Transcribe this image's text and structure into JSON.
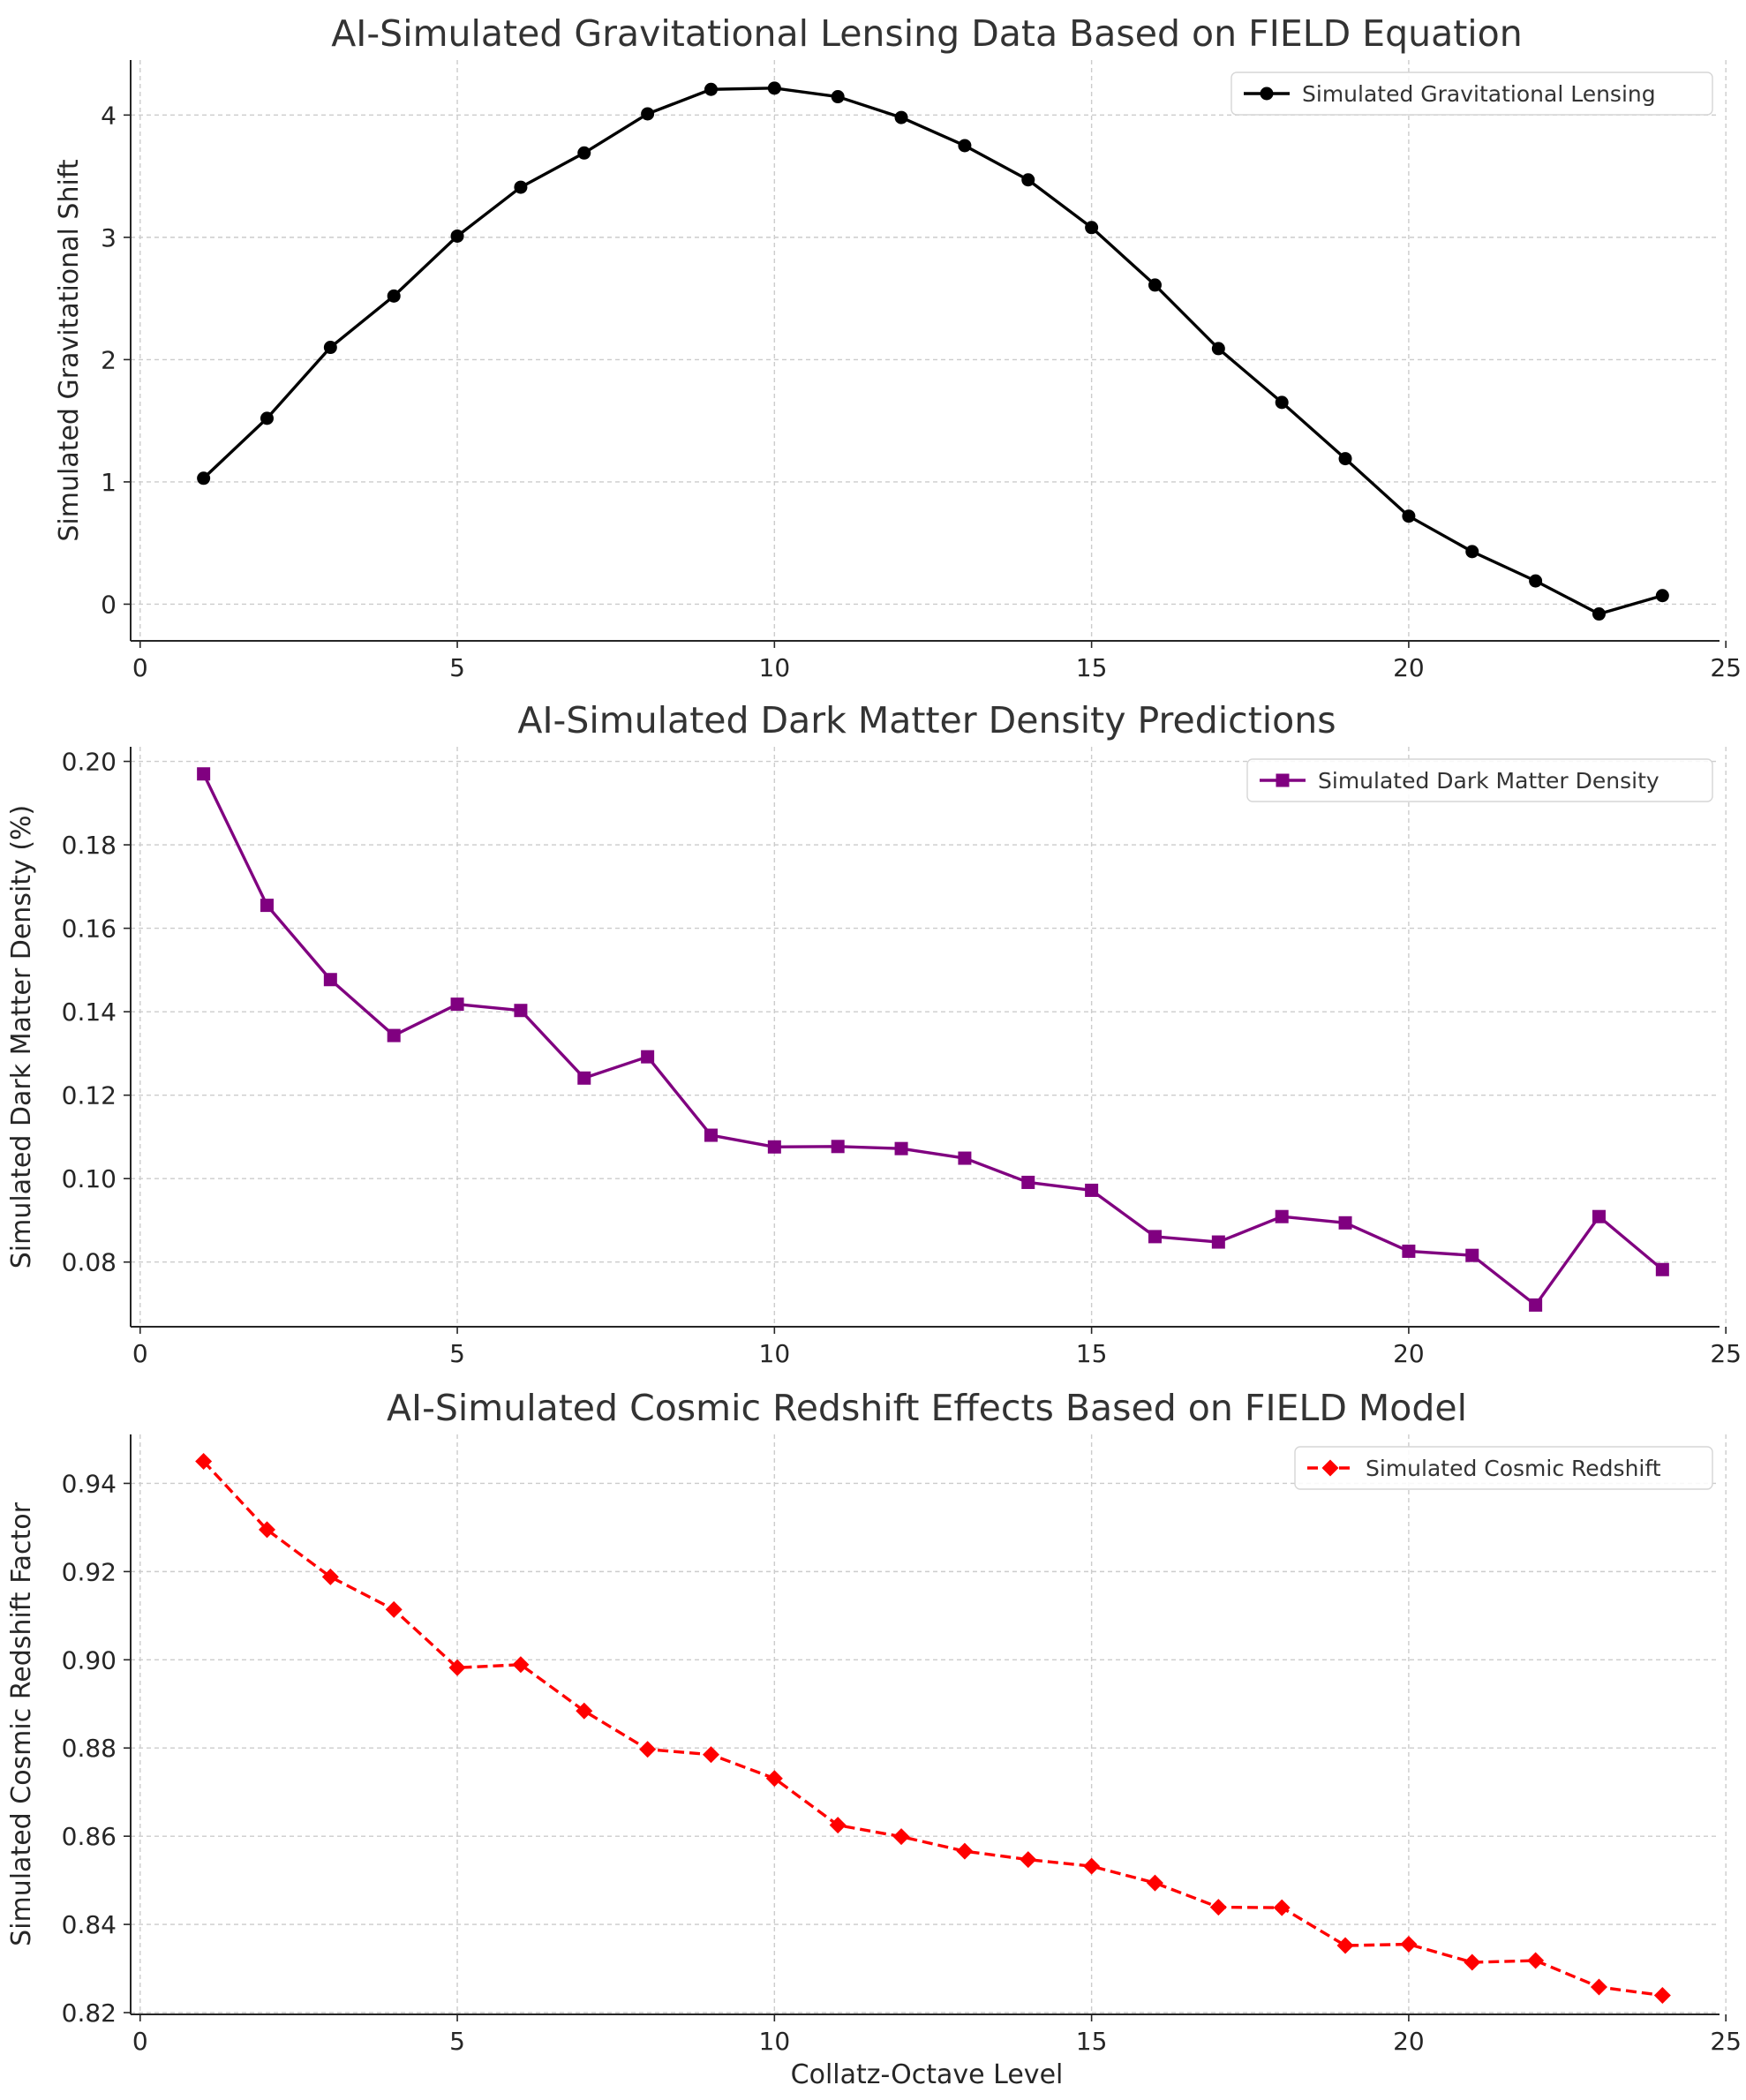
{
  "chart_data": [
    {
      "type": "line",
      "title": "AI-Simulated Gravitational Lensing Data Based on FIELD Equation",
      "xlabel": "",
      "ylabel": "Simulated Gravitational Shift",
      "xlim": [
        -0.15,
        24.9
      ],
      "ylim": [
        -0.3,
        4.45
      ],
      "xticks": [
        "0",
        "5",
        "10",
        "15",
        "20",
        "25"
      ],
      "yticks": [
        "0",
        "1",
        "2",
        "3",
        "4"
      ],
      "grid": true,
      "legend_position": "top-right",
      "series": [
        {
          "name": "Simulated Gravitational Lensing",
          "color": "#000000",
          "marker": "circle",
          "linestyle": "solid",
          "x": [
            1,
            2,
            3,
            4,
            5,
            6,
            7,
            8,
            9,
            10,
            11,
            12,
            13,
            14,
            15,
            16,
            17,
            18,
            19,
            20,
            21,
            22,
            23,
            24
          ],
          "y": [
            1.03,
            1.52,
            2.1,
            2.52,
            3.01,
            3.41,
            3.69,
            4.01,
            4.21,
            4.22,
            4.15,
            3.98,
            3.75,
            3.47,
            3.08,
            2.61,
            2.09,
            1.65,
            1.19,
            0.72,
            0.43,
            0.19,
            -0.08,
            0.07
          ]
        }
      ]
    },
    {
      "type": "line",
      "title": "AI-Simulated Dark Matter Density Predictions",
      "xlabel": "",
      "ylabel": "Simulated Dark Matter Density (%)",
      "xlim": [
        -0.15,
        24.9
      ],
      "ylim": [
        0.0645,
        0.2035
      ],
      "xticks": [
        "0",
        "5",
        "10",
        "15",
        "20",
        "25"
      ],
      "yticks": [
        "0.08",
        "0.10",
        "0.12",
        "0.14",
        "0.16",
        "0.18",
        "0.20"
      ],
      "grid": true,
      "legend_position": "top-right",
      "series": [
        {
          "name": "Simulated Dark Matter Density",
          "color": "#800080",
          "marker": "square",
          "linestyle": "solid",
          "x": [
            1,
            2,
            3,
            4,
            5,
            6,
            7,
            8,
            9,
            10,
            11,
            12,
            13,
            14,
            15,
            16,
            17,
            18,
            19,
            20,
            21,
            22,
            23,
            24
          ],
          "y": [
            0.197,
            0.1655,
            0.1477,
            0.1343,
            0.1418,
            0.1403,
            0.1241,
            0.1292,
            0.1104,
            0.1076,
            0.1077,
            0.1072,
            0.1049,
            0.0991,
            0.0972,
            0.0861,
            0.0848,
            0.0909,
            0.0894,
            0.0826,
            0.0816,
            0.0697,
            0.0909,
            0.0782
          ]
        }
      ]
    },
    {
      "type": "line",
      "title": "AI-Simulated Cosmic Redshift Effects Based on FIELD Model",
      "xlabel": "Collatz-Octave Level",
      "ylabel": "Simulated Cosmic Redshift Factor",
      "xlim": [
        -0.15,
        24.9
      ],
      "ylim": [
        0.8196,
        0.9511
      ],
      "xticks": [
        "0",
        "5",
        "10",
        "15",
        "20",
        "25"
      ],
      "yticks": [
        "0.82",
        "0.84",
        "0.86",
        "0.88",
        "0.90",
        "0.92",
        "0.94"
      ],
      "grid": true,
      "legend_position": "top-right",
      "series": [
        {
          "name": "Simulated Cosmic Redshift",
          "color": "#ff0000",
          "marker": "diamond",
          "linestyle": "dashed",
          "x": [
            1,
            2,
            3,
            4,
            5,
            6,
            7,
            8,
            9,
            10,
            11,
            12,
            13,
            14,
            15,
            16,
            17,
            18,
            19,
            20,
            21,
            22,
            23,
            24
          ],
          "y": [
            0.945,
            0.9295,
            0.9188,
            0.9114,
            0.8982,
            0.8989,
            0.8884,
            0.8797,
            0.8785,
            0.8731,
            0.8625,
            0.8599,
            0.8566,
            0.8547,
            0.8532,
            0.8494,
            0.8439,
            0.8438,
            0.8352,
            0.8355,
            0.8314,
            0.8318,
            0.8258,
            0.8239
          ]
        }
      ]
    }
  ]
}
